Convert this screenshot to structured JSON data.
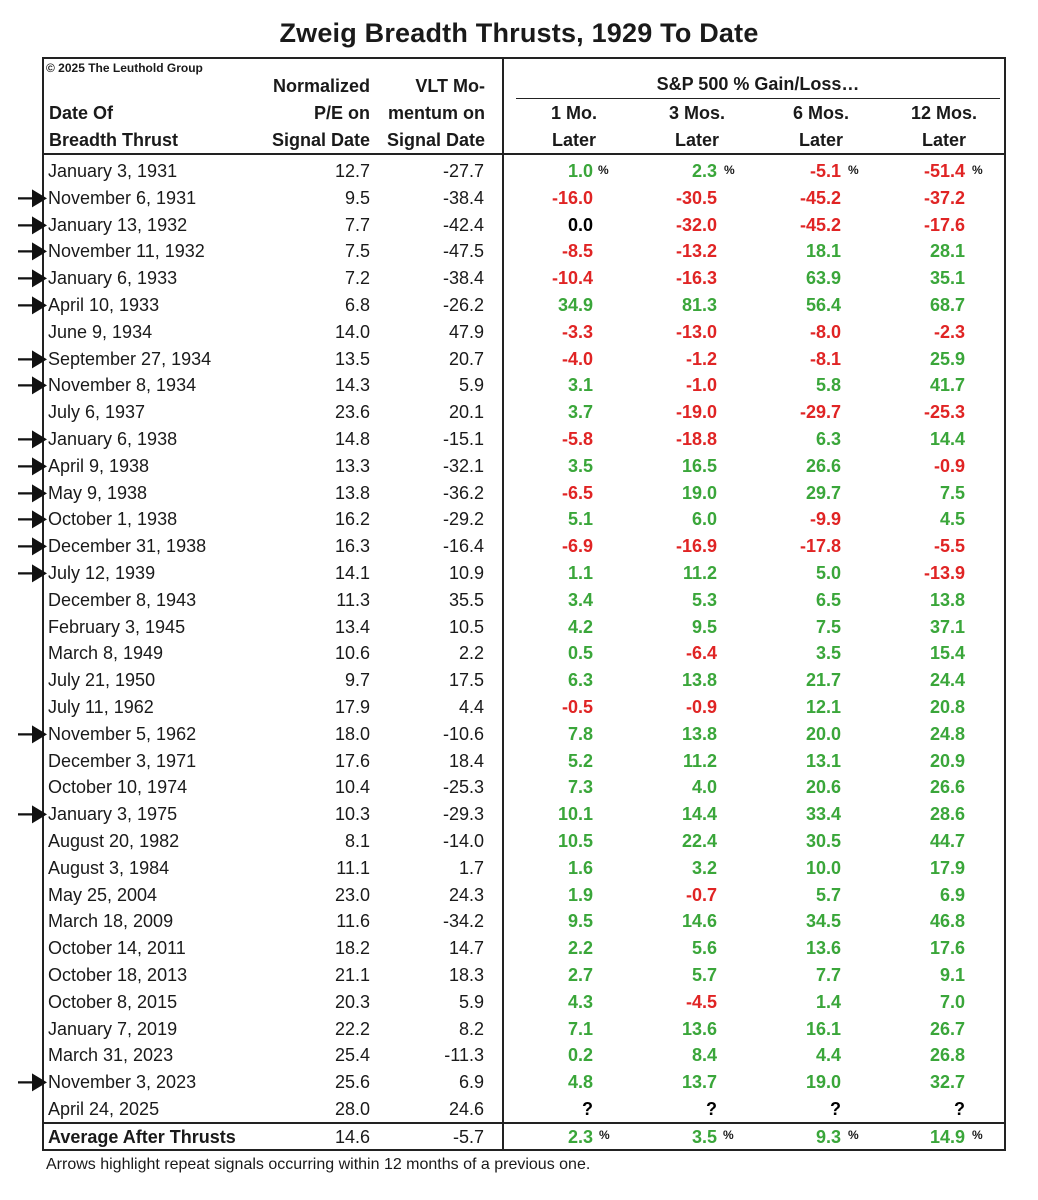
{
  "title": "Zweig Breadth Thrusts, 1929 To Date",
  "copyright": "© 2025 The Leuthold Group",
  "headers": {
    "date": [
      "Date Of",
      "Breadth Thrust"
    ],
    "pe": [
      "Normalized",
      "P/E on",
      "Signal Date"
    ],
    "vlt": [
      "VLT Mo-",
      "mentum on",
      "Signal Date"
    ],
    "group": "S&P 500 % Gain/Loss…",
    "g1": [
      "1 Mo.",
      "Later"
    ],
    "g2": [
      "3 Mos.",
      "Later"
    ],
    "g3": [
      "6 Mos.",
      "Later"
    ],
    "g4": [
      "12 Mos.",
      "Later"
    ]
  },
  "pct_symbol": "%",
  "colors": {
    "gain": "#3aa63a",
    "loss": "#e02424",
    "neutral": "#000000"
  },
  "rows": [
    {
      "date": "January 3, 1931",
      "pe": "12.7",
      "vlt": "-27.7",
      "g": [
        "1.0",
        "2.3",
        "-5.1",
        "-51.4"
      ],
      "c": [
        "g",
        "g",
        "r",
        "r"
      ],
      "arrow": false,
      "pct": true
    },
    {
      "date": "November 6, 1931",
      "pe": "9.5",
      "vlt": "-38.4",
      "g": [
        "-16.0",
        "-30.5",
        "-45.2",
        "-37.2"
      ],
      "c": [
        "r",
        "r",
        "r",
        "r"
      ],
      "arrow": true
    },
    {
      "date": "January 13, 1932",
      "pe": "7.7",
      "vlt": "-42.4",
      "g": [
        "0.0",
        "-32.0",
        "-45.2",
        "-17.6"
      ],
      "c": [
        "k",
        "r",
        "r",
        "r"
      ],
      "arrow": true
    },
    {
      "date": "November 11, 1932",
      "pe": "7.5",
      "vlt": "-47.5",
      "g": [
        "-8.5",
        "-13.2",
        "18.1",
        "28.1"
      ],
      "c": [
        "r",
        "r",
        "g",
        "g"
      ],
      "arrow": true
    },
    {
      "date": "January 6, 1933",
      "pe": "7.2",
      "vlt": "-38.4",
      "g": [
        "-10.4",
        "-16.3",
        "63.9",
        "35.1"
      ],
      "c": [
        "r",
        "r",
        "g",
        "g"
      ],
      "arrow": true
    },
    {
      "date": "April 10, 1933",
      "pe": "6.8",
      "vlt": "-26.2",
      "g": [
        "34.9",
        "81.3",
        "56.4",
        "68.7"
      ],
      "c": [
        "g",
        "g",
        "g",
        "g"
      ],
      "arrow": true
    },
    {
      "date": "June 9, 1934",
      "pe": "14.0",
      "vlt": "47.9",
      "g": [
        "-3.3",
        "-13.0",
        "-8.0",
        "-2.3"
      ],
      "c": [
        "r",
        "r",
        "r",
        "r"
      ],
      "arrow": false
    },
    {
      "date": "September 27, 1934",
      "pe": "13.5",
      "vlt": "20.7",
      "g": [
        "-4.0",
        "-1.2",
        "-8.1",
        "25.9"
      ],
      "c": [
        "r",
        "r",
        "r",
        "g"
      ],
      "arrow": true
    },
    {
      "date": "November 8, 1934",
      "pe": "14.3",
      "vlt": "5.9",
      "g": [
        "3.1",
        "-1.0",
        "5.8",
        "41.7"
      ],
      "c": [
        "g",
        "r",
        "g",
        "g"
      ],
      "arrow": true
    },
    {
      "date": "July 6, 1937",
      "pe": "23.6",
      "vlt": "20.1",
      "g": [
        "3.7",
        "-19.0",
        "-29.7",
        "-25.3"
      ],
      "c": [
        "g",
        "r",
        "r",
        "r"
      ],
      "arrow": false
    },
    {
      "date": "January 6, 1938",
      "pe": "14.8",
      "vlt": "-15.1",
      "g": [
        "-5.8",
        "-18.8",
        "6.3",
        "14.4"
      ],
      "c": [
        "r",
        "r",
        "g",
        "g"
      ],
      "arrow": true
    },
    {
      "date": "April 9, 1938",
      "pe": "13.3",
      "vlt": "-32.1",
      "g": [
        "3.5",
        "16.5",
        "26.6",
        "-0.9"
      ],
      "c": [
        "g",
        "g",
        "g",
        "r"
      ],
      "arrow": true
    },
    {
      "date": "May 9, 1938",
      "pe": "13.8",
      "vlt": "-36.2",
      "g": [
        "-6.5",
        "19.0",
        "29.7",
        "7.5"
      ],
      "c": [
        "r",
        "g",
        "g",
        "g"
      ],
      "arrow": true
    },
    {
      "date": "October 1, 1938",
      "pe": "16.2",
      "vlt": "-29.2",
      "g": [
        "5.1",
        "6.0",
        "-9.9",
        "4.5"
      ],
      "c": [
        "g",
        "g",
        "r",
        "g"
      ],
      "arrow": true
    },
    {
      "date": "December 31, 1938",
      "pe": "16.3",
      "vlt": "-16.4",
      "g": [
        "-6.9",
        "-16.9",
        "-17.8",
        "-5.5"
      ],
      "c": [
        "r",
        "r",
        "r",
        "r"
      ],
      "arrow": true
    },
    {
      "date": "July 12, 1939",
      "pe": "14.1",
      "vlt": "10.9",
      "g": [
        "1.1",
        "11.2",
        "5.0",
        "-13.9"
      ],
      "c": [
        "g",
        "g",
        "g",
        "r"
      ],
      "arrow": true
    },
    {
      "date": "December 8, 1943",
      "pe": "11.3",
      "vlt": "35.5",
      "g": [
        "3.4",
        "5.3",
        "6.5",
        "13.8"
      ],
      "c": [
        "g",
        "g",
        "g",
        "g"
      ],
      "arrow": false
    },
    {
      "date": "February 3, 1945",
      "pe": "13.4",
      "vlt": "10.5",
      "g": [
        "4.2",
        "9.5",
        "7.5",
        "37.1"
      ],
      "c": [
        "g",
        "g",
        "g",
        "g"
      ],
      "arrow": false
    },
    {
      "date": "March 8, 1949",
      "pe": "10.6",
      "vlt": "2.2",
      "g": [
        "0.5",
        "-6.4",
        "3.5",
        "15.4"
      ],
      "c": [
        "g",
        "r",
        "g",
        "g"
      ],
      "arrow": false
    },
    {
      "date": "July 21, 1950",
      "pe": "9.7",
      "vlt": "17.5",
      "g": [
        "6.3",
        "13.8",
        "21.7",
        "24.4"
      ],
      "c": [
        "g",
        "g",
        "g",
        "g"
      ],
      "arrow": false
    },
    {
      "date": "July 11, 1962",
      "pe": "17.9",
      "vlt": "4.4",
      "g": [
        "-0.5",
        "-0.9",
        "12.1",
        "20.8"
      ],
      "c": [
        "r",
        "r",
        "g",
        "g"
      ],
      "arrow": false
    },
    {
      "date": "November 5, 1962",
      "pe": "18.0",
      "vlt": "-10.6",
      "g": [
        "7.8",
        "13.8",
        "20.0",
        "24.8"
      ],
      "c": [
        "g",
        "g",
        "g",
        "g"
      ],
      "arrow": true
    },
    {
      "date": "December 3, 1971",
      "pe": "17.6",
      "vlt": "18.4",
      "g": [
        "5.2",
        "11.2",
        "13.1",
        "20.9"
      ],
      "c": [
        "g",
        "g",
        "g",
        "g"
      ],
      "arrow": false
    },
    {
      "date": "October 10, 1974",
      "pe": "10.4",
      "vlt": "-25.3",
      "g": [
        "7.3",
        "4.0",
        "20.6",
        "26.6"
      ],
      "c": [
        "g",
        "g",
        "g",
        "g"
      ],
      "arrow": false
    },
    {
      "date": "January 3, 1975",
      "pe": "10.3",
      "vlt": "-29.3",
      "g": [
        "10.1",
        "14.4",
        "33.4",
        "28.6"
      ],
      "c": [
        "g",
        "g",
        "g",
        "g"
      ],
      "arrow": true
    },
    {
      "date": "August 20, 1982",
      "pe": "8.1",
      "vlt": "-14.0",
      "g": [
        "10.5",
        "22.4",
        "30.5",
        "44.7"
      ],
      "c": [
        "g",
        "g",
        "g",
        "g"
      ],
      "arrow": false
    },
    {
      "date": "August 3, 1984",
      "pe": "11.1",
      "vlt": "1.7",
      "g": [
        "1.6",
        "3.2",
        "10.0",
        "17.9"
      ],
      "c": [
        "g",
        "g",
        "g",
        "g"
      ],
      "arrow": false
    },
    {
      "date": "May 25, 2004",
      "pe": "23.0",
      "vlt": "24.3",
      "g": [
        "1.9",
        "-0.7",
        "5.7",
        "6.9"
      ],
      "c": [
        "g",
        "r",
        "g",
        "g"
      ],
      "arrow": false
    },
    {
      "date": "March 18, 2009",
      "pe": "11.6",
      "vlt": "-34.2",
      "g": [
        "9.5",
        "14.6",
        "34.5",
        "46.8"
      ],
      "c": [
        "g",
        "g",
        "g",
        "g"
      ],
      "arrow": false
    },
    {
      "date": "October 14, 2011",
      "pe": "18.2",
      "vlt": "14.7",
      "g": [
        "2.2",
        "5.6",
        "13.6",
        "17.6"
      ],
      "c": [
        "g",
        "g",
        "g",
        "g"
      ],
      "arrow": false
    },
    {
      "date": "October 18, 2013",
      "pe": "21.1",
      "vlt": "18.3",
      "g": [
        "2.7",
        "5.7",
        "7.7",
        "9.1"
      ],
      "c": [
        "g",
        "g",
        "g",
        "g"
      ],
      "arrow": false
    },
    {
      "date": "October 8, 2015",
      "pe": "20.3",
      "vlt": "5.9",
      "g": [
        "4.3",
        "-4.5",
        "1.4",
        "7.0"
      ],
      "c": [
        "g",
        "r",
        "g",
        "g"
      ],
      "arrow": false
    },
    {
      "date": "January 7, 2019",
      "pe": "22.2",
      "vlt": "8.2",
      "g": [
        "7.1",
        "13.6",
        "16.1",
        "26.7"
      ],
      "c": [
        "g",
        "g",
        "g",
        "g"
      ],
      "arrow": false
    },
    {
      "date": "March 31, 2023",
      "pe": "25.4",
      "vlt": "-11.3",
      "g": [
        "0.2",
        "8.4",
        "4.4",
        "26.8"
      ],
      "c": [
        "g",
        "g",
        "g",
        "g"
      ],
      "arrow": false
    },
    {
      "date": "November 3, 2023",
      "pe": "25.6",
      "vlt": "6.9",
      "g": [
        "4.8",
        "13.7",
        "19.0",
        "32.7"
      ],
      "c": [
        "g",
        "g",
        "g",
        "g"
      ],
      "arrow": true
    },
    {
      "date": "April 24, 2025",
      "pe": "28.0",
      "vlt": "24.6",
      "g": [
        "?",
        "?",
        "?",
        "?"
      ],
      "c": [
        "k",
        "k",
        "k",
        "k"
      ],
      "arrow": false
    }
  ],
  "average": {
    "label": "Average After Thrusts",
    "pe": "14.6",
    "vlt": "-5.7",
    "g": [
      "2.3",
      "3.5",
      "9.3",
      "14.9"
    ]
  },
  "footnote": "Arrows highlight repeat signals occurring within 12 months of a previous one."
}
